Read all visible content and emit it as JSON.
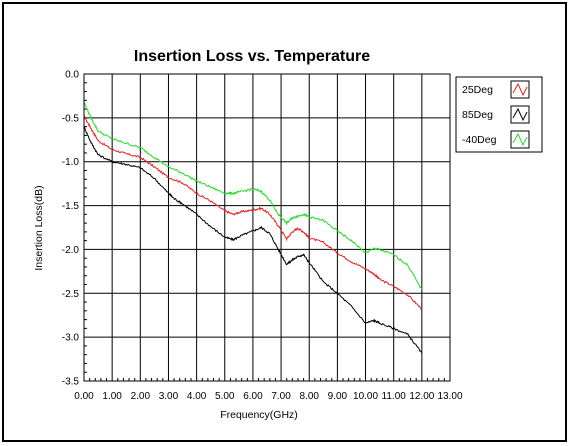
{
  "chart_data": {
    "type": "line",
    "title": "Insertion Loss vs. Temperature",
    "xlabel": "Frequency(GHz)",
    "ylabel": "Insertion Loss(dB)",
    "xlim": [
      0,
      13
    ],
    "ylim": [
      -3.5,
      0
    ],
    "xticks": [
      "0.00",
      "1.00",
      "2.00",
      "3.00",
      "4.00",
      "5.00",
      "6.00",
      "7.00",
      "8.00",
      "9.00",
      "10.00",
      "11.00",
      "12.00",
      "13.00"
    ],
    "yticks": [
      "0.0",
      "-0.5",
      "-1.0",
      "-1.5",
      "-2.0",
      "-2.5",
      "-3.0",
      "-3.5"
    ],
    "grid": true,
    "legend_position": "right",
    "series": [
      {
        "name": "25Deg",
        "color": "#e82020",
        "x": [
          0.0,
          0.25,
          0.5,
          1.0,
          1.5,
          2.0,
          2.5,
          3.0,
          3.5,
          4.0,
          4.5,
          5.0,
          5.3,
          5.6,
          6.0,
          6.3,
          6.6,
          6.9,
          7.2,
          7.4,
          7.6,
          7.8,
          8.0,
          8.5,
          9.0,
          9.5,
          10.0,
          10.3,
          10.5,
          11.0,
          11.5,
          12.0
        ],
        "y": [
          -0.48,
          -0.62,
          -0.76,
          -0.86,
          -0.91,
          -0.95,
          -1.06,
          -1.18,
          -1.24,
          -1.36,
          -1.45,
          -1.56,
          -1.6,
          -1.57,
          -1.55,
          -1.53,
          -1.6,
          -1.73,
          -1.88,
          -1.8,
          -1.76,
          -1.8,
          -1.87,
          -1.92,
          -2.04,
          -2.14,
          -2.22,
          -2.28,
          -2.34,
          -2.42,
          -2.52,
          -2.68
        ]
      },
      {
        "name": "85Deg",
        "color": "#000000",
        "x": [
          0.0,
          0.25,
          0.5,
          1.0,
          1.5,
          2.0,
          2.5,
          3.0,
          3.2,
          3.5,
          4.0,
          4.5,
          5.0,
          5.3,
          5.6,
          6.0,
          6.3,
          6.6,
          6.9,
          7.2,
          7.4,
          7.6,
          7.8,
          8.0,
          8.5,
          9.0,
          9.5,
          10.0,
          10.3,
          10.5,
          11.0,
          11.5,
          12.0
        ],
        "y": [
          -0.6,
          -0.78,
          -0.92,
          -1.0,
          -1.03,
          -1.07,
          -1.19,
          -1.36,
          -1.42,
          -1.48,
          -1.6,
          -1.74,
          -1.86,
          -1.89,
          -1.84,
          -1.79,
          -1.75,
          -1.82,
          -2.0,
          -2.17,
          -2.12,
          -2.08,
          -2.06,
          -2.15,
          -2.37,
          -2.5,
          -2.65,
          -2.84,
          -2.81,
          -2.84,
          -2.9,
          -2.97,
          -3.18
        ]
      },
      {
        "name": "-40Deg",
        "color": "#22dd22",
        "x": [
          0.0,
          0.25,
          0.5,
          1.0,
          1.5,
          2.0,
          2.5,
          3.0,
          3.5,
          4.0,
          4.5,
          5.0,
          5.3,
          5.6,
          6.0,
          6.3,
          6.6,
          6.9,
          7.2,
          7.4,
          7.6,
          7.8,
          8.0,
          8.5,
          9.0,
          9.5,
          10.0,
          10.3,
          10.5,
          11.0,
          11.5,
          12.0
        ],
        "y": [
          -0.32,
          -0.5,
          -0.65,
          -0.74,
          -0.79,
          -0.84,
          -0.95,
          -1.06,
          -1.13,
          -1.22,
          -1.29,
          -1.36,
          -1.36,
          -1.34,
          -1.31,
          -1.34,
          -1.44,
          -1.6,
          -1.7,
          -1.64,
          -1.62,
          -1.6,
          -1.63,
          -1.67,
          -1.79,
          -1.9,
          -2.04,
          -1.99,
          -2.0,
          -2.06,
          -2.18,
          -2.46
        ]
      }
    ]
  }
}
